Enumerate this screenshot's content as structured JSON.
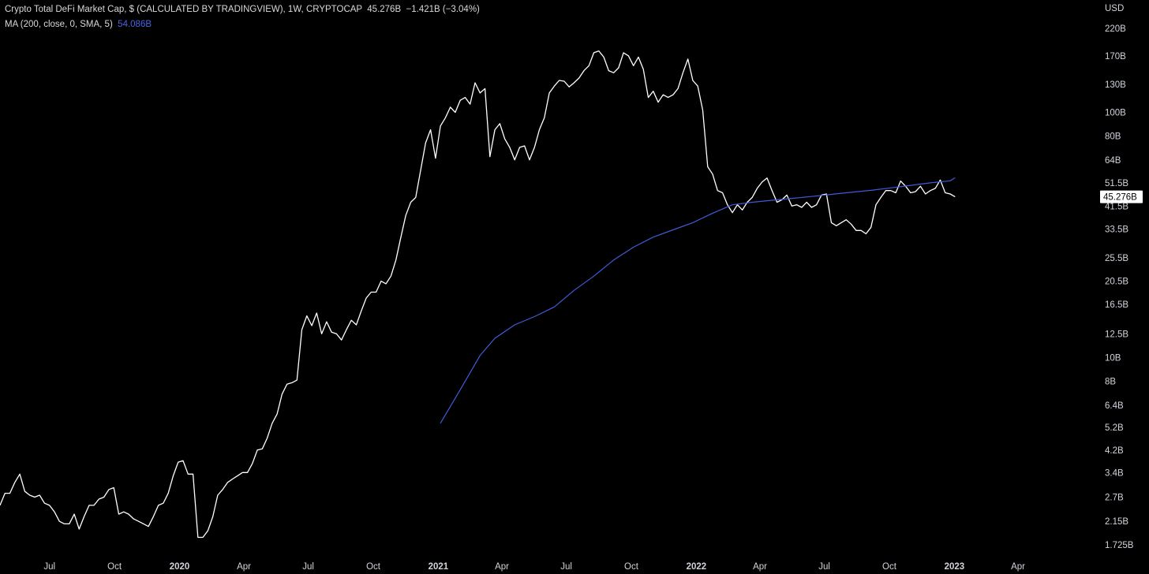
{
  "legend": {
    "title": "Crypto Total DeFi Market Cap, $ (CALCULATED BY TRADINGVIEW), 1W, CRYPTOCAP",
    "last": "45.276B",
    "change": "−1.421B (−3.04%)",
    "ma_label": "MA (200, close, 0, SMA, 5)",
    "ma_value": "54.086B"
  },
  "colors": {
    "background": "#000000",
    "price_line": "#ffffff",
    "ma_line": "#3f5bd9",
    "text": "#d1d4dc"
  },
  "chart_data": {
    "type": "line",
    "y_scale": "log",
    "y_unit": "USD",
    "ylim": [
      1.65,
      260
    ],
    "x_range": [
      "2019-04-22",
      "2023-05-29"
    ],
    "y_ticks": [
      {
        "value": 220,
        "label": "220B"
      },
      {
        "value": 170,
        "label": "170B"
      },
      {
        "value": 130,
        "label": "130B"
      },
      {
        "value": 100,
        "label": "100B"
      },
      {
        "value": 80,
        "label": "80B"
      },
      {
        "value": 64,
        "label": "64B"
      },
      {
        "value": 51.5,
        "label": "51.5B"
      },
      {
        "value": 41.5,
        "label": "41.5B"
      },
      {
        "value": 33.5,
        "label": "33.5B"
      },
      {
        "value": 25.5,
        "label": "25.5B"
      },
      {
        "value": 20.5,
        "label": "20.5B"
      },
      {
        "value": 16.5,
        "label": "16.5B"
      },
      {
        "value": 12.5,
        "label": "12.5B"
      },
      {
        "value": 10,
        "label": "10B"
      },
      {
        "value": 8,
        "label": "8B"
      },
      {
        "value": 6.4,
        "label": "6.4B"
      },
      {
        "value": 5.2,
        "label": "5.2B"
      },
      {
        "value": 4.2,
        "label": "4.2B"
      },
      {
        "value": 3.4,
        "label": "3.4B"
      },
      {
        "value": 2.7,
        "label": "2.7B"
      },
      {
        "value": 2.15,
        "label": "2.15B"
      },
      {
        "value": 1.725,
        "label": "1.725B"
      }
    ],
    "x_ticks": [
      {
        "date": "2019-07-01",
        "label": "Jul",
        "bold": false
      },
      {
        "date": "2019-10-01",
        "label": "Oct",
        "bold": false
      },
      {
        "date": "2020-01-01",
        "label": "2020",
        "bold": true
      },
      {
        "date": "2020-04-01",
        "label": "Apr",
        "bold": false
      },
      {
        "date": "2020-07-01",
        "label": "Jul",
        "bold": false
      },
      {
        "date": "2020-10-01",
        "label": "Oct",
        "bold": false
      },
      {
        "date": "2021-01-01",
        "label": "2021",
        "bold": true
      },
      {
        "date": "2021-04-01",
        "label": "Apr",
        "bold": false
      },
      {
        "date": "2021-07-01",
        "label": "Jul",
        "bold": false
      },
      {
        "date": "2021-10-01",
        "label": "Oct",
        "bold": false
      },
      {
        "date": "2022-01-01",
        "label": "2022",
        "bold": true
      },
      {
        "date": "2022-04-01",
        "label": "Apr",
        "bold": false
      },
      {
        "date": "2022-07-01",
        "label": "Jul",
        "bold": false
      },
      {
        "date": "2022-10-01",
        "label": "Oct",
        "bold": false
      },
      {
        "date": "2023-01-01",
        "label": "2023",
        "bold": true
      },
      {
        "date": "2023-04-01",
        "label": "Apr",
        "bold": false
      }
    ],
    "last_value_label": "45.276B",
    "series": [
      {
        "role": "price",
        "points": [
          [
            "2019-04-22",
            2.5
          ],
          [
            "2019-04-29",
            2.8
          ],
          [
            "2019-05-06",
            2.8
          ],
          [
            "2019-05-13",
            3.1
          ],
          [
            "2019-05-20",
            3.35
          ],
          [
            "2019-05-27",
            2.85
          ],
          [
            "2019-06-03",
            2.75
          ],
          [
            "2019-06-10",
            2.7
          ],
          [
            "2019-06-17",
            2.75
          ],
          [
            "2019-06-24",
            2.55
          ],
          [
            "2019-07-01",
            2.5
          ],
          [
            "2019-07-08",
            2.35
          ],
          [
            "2019-07-15",
            2.15
          ],
          [
            "2019-07-22",
            2.1
          ],
          [
            "2019-07-29",
            2.1
          ],
          [
            "2019-08-05",
            2.3
          ],
          [
            "2019-08-12",
            2.0
          ],
          [
            "2019-08-19",
            2.25
          ],
          [
            "2019-08-26",
            2.5
          ],
          [
            "2019-09-02",
            2.5
          ],
          [
            "2019-09-09",
            2.65
          ],
          [
            "2019-09-16",
            2.7
          ],
          [
            "2019-09-23",
            2.9
          ],
          [
            "2019-09-30",
            2.95
          ],
          [
            "2019-10-07",
            2.3
          ],
          [
            "2019-10-14",
            2.35
          ],
          [
            "2019-10-21",
            2.3
          ],
          [
            "2019-10-28",
            2.2
          ],
          [
            "2019-11-04",
            2.15
          ],
          [
            "2019-11-11",
            2.1
          ],
          [
            "2019-11-18",
            2.05
          ],
          [
            "2019-11-25",
            2.25
          ],
          [
            "2019-12-02",
            2.5
          ],
          [
            "2019-12-09",
            2.55
          ],
          [
            "2019-12-16",
            2.8
          ],
          [
            "2019-12-23",
            3.3
          ],
          [
            "2019-12-30",
            3.75
          ],
          [
            "2020-01-06",
            3.8
          ],
          [
            "2020-01-13",
            3.35
          ],
          [
            "2020-01-20",
            3.35
          ],
          [
            "2020-01-27",
            1.85
          ],
          [
            "2020-02-03",
            1.85
          ],
          [
            "2020-02-10",
            1.97
          ],
          [
            "2020-02-17",
            2.25
          ],
          [
            "2020-02-24",
            2.75
          ],
          [
            "2020-03-02",
            2.9
          ],
          [
            "2020-03-09",
            3.1
          ],
          [
            "2020-03-16",
            3.2
          ],
          [
            "2020-03-23",
            3.3
          ],
          [
            "2020-03-30",
            3.4
          ],
          [
            "2020-04-06",
            3.4
          ],
          [
            "2020-04-13",
            3.7
          ],
          [
            "2020-04-20",
            4.2
          ],
          [
            "2020-04-27",
            4.25
          ],
          [
            "2020-05-04",
            4.7
          ],
          [
            "2020-05-11",
            5.4
          ],
          [
            "2020-05-18",
            5.9
          ],
          [
            "2020-05-25",
            7.1
          ],
          [
            "2020-06-01",
            7.8
          ],
          [
            "2020-06-08",
            7.9
          ],
          [
            "2020-06-15",
            8.1
          ],
          [
            "2020-06-22",
            13.0
          ],
          [
            "2020-06-29",
            14.8
          ],
          [
            "2020-07-06",
            13.5
          ],
          [
            "2020-07-13",
            15.2
          ],
          [
            "2020-07-20",
            12.5
          ],
          [
            "2020-07-27",
            14.0
          ],
          [
            "2020-08-03",
            12.7
          ],
          [
            "2020-08-10",
            12.5
          ],
          [
            "2020-08-17",
            11.8
          ],
          [
            "2020-08-24",
            13.0
          ],
          [
            "2020-08-31",
            14.2
          ],
          [
            "2020-09-07",
            13.6
          ],
          [
            "2020-09-14",
            15.5
          ],
          [
            "2020-09-21",
            17.5
          ],
          [
            "2020-09-28",
            18.5
          ],
          [
            "2020-10-05",
            18.5
          ],
          [
            "2020-10-12",
            20.5
          ],
          [
            "2020-10-19",
            20.0
          ],
          [
            "2020-10-26",
            21.5
          ],
          [
            "2020-11-02",
            25.0
          ],
          [
            "2020-11-09",
            31.0
          ],
          [
            "2020-11-16",
            38.0
          ],
          [
            "2020-11-23",
            43.0
          ],
          [
            "2020-11-30",
            45.0
          ],
          [
            "2020-12-07",
            58.0
          ],
          [
            "2020-12-14",
            75.0
          ],
          [
            "2020-12-21",
            85.0
          ],
          [
            "2020-12-28",
            65.0
          ],
          [
            "2021-01-04",
            88.0
          ],
          [
            "2021-01-11",
            95.0
          ],
          [
            "2021-01-18",
            105.0
          ],
          [
            "2021-01-25",
            100.0
          ],
          [
            "2021-02-01",
            112.0
          ],
          [
            "2021-02-08",
            115.0
          ],
          [
            "2021-02-15",
            108.0
          ],
          [
            "2021-02-22",
            132.0
          ],
          [
            "2021-03-01",
            120.0
          ],
          [
            "2021-03-08",
            125.0
          ],
          [
            "2021-03-15",
            66.0
          ],
          [
            "2021-03-22",
            85.0
          ],
          [
            "2021-03-29",
            90.0
          ],
          [
            "2021-04-05",
            78.0
          ],
          [
            "2021-04-12",
            72.0
          ],
          [
            "2021-04-19",
            64.0
          ],
          [
            "2021-04-26",
            72.0
          ],
          [
            "2021-05-03",
            73.0
          ],
          [
            "2021-05-10",
            64.0
          ],
          [
            "2021-05-17",
            72.0
          ],
          [
            "2021-05-24",
            85.0
          ],
          [
            "2021-05-31",
            95.0
          ],
          [
            "2021-06-07",
            120.0
          ],
          [
            "2021-06-14",
            128.0
          ],
          [
            "2021-06-21",
            135.0
          ],
          [
            "2021-06-28",
            134.0
          ],
          [
            "2021-07-05",
            127.0
          ],
          [
            "2021-07-12",
            132.0
          ],
          [
            "2021-07-19",
            138.0
          ],
          [
            "2021-07-26",
            148.0
          ],
          [
            "2021-08-02",
            155.0
          ],
          [
            "2021-08-09",
            175.0
          ],
          [
            "2021-08-16",
            178.0
          ],
          [
            "2021-08-23",
            168.0
          ],
          [
            "2021-08-30",
            148.0
          ],
          [
            "2021-09-06",
            145.0
          ],
          [
            "2021-09-13",
            152.0
          ],
          [
            "2021-09-20",
            175.0
          ],
          [
            "2021-09-27",
            170.0
          ],
          [
            "2021-10-04",
            155.0
          ],
          [
            "2021-10-11",
            168.0
          ],
          [
            "2021-10-18",
            150.0
          ],
          [
            "2021-10-25",
            115.0
          ],
          [
            "2021-11-01",
            122.0
          ],
          [
            "2021-11-08",
            110.0
          ],
          [
            "2021-11-15",
            118.0
          ],
          [
            "2021-11-22",
            115.0
          ],
          [
            "2021-11-29",
            118.0
          ],
          [
            "2021-12-06",
            125.0
          ],
          [
            "2021-12-13",
            145.0
          ],
          [
            "2021-12-20",
            165.0
          ],
          [
            "2021-12-27",
            135.0
          ],
          [
            "2022-01-03",
            128.0
          ],
          [
            "2022-01-10",
            102.0
          ],
          [
            "2022-01-17",
            60.0
          ],
          [
            "2022-01-24",
            56.0
          ],
          [
            "2022-01-31",
            48.0
          ],
          [
            "2022-02-07",
            47.0
          ],
          [
            "2022-02-14",
            42.0
          ],
          [
            "2022-02-21",
            39.0
          ],
          [
            "2022-02-28",
            42.0
          ],
          [
            "2022-03-07",
            40.0
          ],
          [
            "2022-03-14",
            43.0
          ],
          [
            "2022-03-21",
            45.0
          ],
          [
            "2022-03-28",
            49.0
          ],
          [
            "2022-04-04",
            52.0
          ],
          [
            "2022-04-11",
            54.0
          ],
          [
            "2022-04-18",
            48.0
          ],
          [
            "2022-04-25",
            43.0
          ],
          [
            "2022-05-02",
            44.0
          ],
          [
            "2022-05-09",
            46.0
          ],
          [
            "2022-05-16",
            41.5
          ],
          [
            "2022-05-23",
            42.0
          ],
          [
            "2022-05-30",
            41.0
          ],
          [
            "2022-06-06",
            43.0
          ],
          [
            "2022-06-13",
            41.0
          ],
          [
            "2022-06-20",
            42.0
          ],
          [
            "2022-06-27",
            46.0
          ],
          [
            "2022-07-04",
            46.5
          ],
          [
            "2022-07-11",
            35.5
          ],
          [
            "2022-07-18",
            34.5
          ],
          [
            "2022-07-25",
            35.5
          ],
          [
            "2022-08-01",
            36.5
          ],
          [
            "2022-08-08",
            35.0
          ],
          [
            "2022-08-15",
            33.0
          ],
          [
            "2022-08-22",
            33.0
          ],
          [
            "2022-08-29",
            32.0
          ],
          [
            "2022-09-05",
            34.0
          ],
          [
            "2022-09-12",
            42.0
          ],
          [
            "2022-09-19",
            45.0
          ],
          [
            "2022-09-26",
            48.0
          ],
          [
            "2022-10-03",
            48.0
          ],
          [
            "2022-10-10",
            47.0
          ],
          [
            "2022-10-17",
            52.5
          ],
          [
            "2022-10-24",
            50.0
          ],
          [
            "2022-10-31",
            47.0
          ],
          [
            "2022-11-07",
            47.5
          ],
          [
            "2022-11-14",
            50.0
          ],
          [
            "2022-11-21",
            46.5
          ],
          [
            "2022-11-28",
            48.0
          ],
          [
            "2022-12-05",
            49.0
          ],
          [
            "2022-12-12",
            53.0
          ],
          [
            "2022-12-19",
            47.0
          ],
          [
            "2022-12-26",
            46.5
          ],
          [
            "2023-01-02",
            45.276
          ]
        ]
      },
      {
        "role": "ma",
        "name": "MA (200, close, 0, SMA, 5)",
        "points": [
          [
            "2021-01-04",
            5.4
          ],
          [
            "2021-02-01",
            7.4
          ],
          [
            "2021-03-01",
            10.2
          ],
          [
            "2021-03-22",
            12.0
          ],
          [
            "2021-04-19",
            13.6
          ],
          [
            "2021-05-17",
            14.7
          ],
          [
            "2021-06-14",
            16.1
          ],
          [
            "2021-07-12",
            18.8
          ],
          [
            "2021-08-09",
            21.5
          ],
          [
            "2021-09-06",
            25.0
          ],
          [
            "2021-10-04",
            28.2
          ],
          [
            "2021-11-01",
            31.0
          ],
          [
            "2021-11-29",
            33.2
          ],
          [
            "2021-12-27",
            35.5
          ],
          [
            "2022-01-24",
            38.8
          ],
          [
            "2022-02-21",
            42.0
          ],
          [
            "2022-03-21",
            43.0
          ],
          [
            "2022-04-18",
            43.8
          ],
          [
            "2022-05-16",
            44.6
          ],
          [
            "2022-06-13",
            45.4
          ],
          [
            "2022-07-11",
            46.3
          ],
          [
            "2022-08-08",
            47.2
          ],
          [
            "2022-09-05",
            48.1
          ],
          [
            "2022-10-03",
            49.2
          ],
          [
            "2022-10-31",
            50.4
          ],
          [
            "2022-11-28",
            51.6
          ],
          [
            "2022-12-26",
            52.6
          ],
          [
            "2023-01-02",
            54.086
          ]
        ]
      }
    ]
  }
}
